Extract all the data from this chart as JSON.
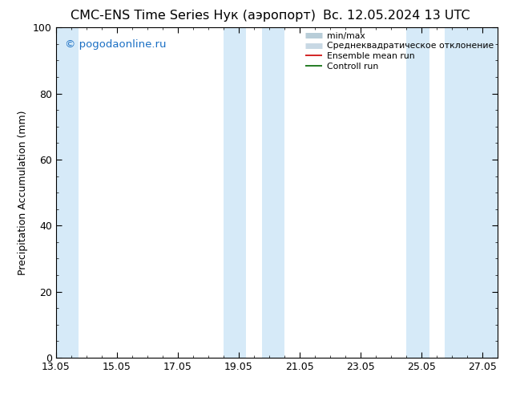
{
  "title_left": "CMC-ENS Time Series Нук (аэропорт)",
  "title_right": "Вс. 12.05.2024 13 UTC",
  "ylabel": "Precipitation Accumulation (mm)",
  "watermark": "© pogodaonline.ru",
  "ylim": [
    0,
    100
  ],
  "yticks": [
    0,
    20,
    40,
    60,
    80,
    100
  ],
  "xlim_start": 0.0,
  "xlim_end": 14.5,
  "xtick_labels": [
    "13.05",
    "15.05",
    "17.05",
    "19.05",
    "21.05",
    "23.05",
    "25.05",
    "27.05"
  ],
  "xtick_positions": [
    0,
    2,
    4,
    6,
    8,
    10,
    12,
    14
  ],
  "shaded_bands": [
    [
      -0.1,
      0.75
    ],
    [
      5.5,
      6.25
    ],
    [
      6.75,
      7.5
    ],
    [
      11.5,
      12.25
    ],
    [
      12.75,
      14.6
    ]
  ],
  "shade_color": "#d6eaf8",
  "background_color": "#ffffff",
  "legend_items": [
    {
      "label": "min/max",
      "color": "#b8cdd8",
      "lw": 5
    },
    {
      "label": "Среднеквадратическое отклонение",
      "color": "#c8d8e4",
      "lw": 5
    },
    {
      "label": "Ensemble mean run",
      "color": "#cc0000",
      "lw": 1.2
    },
    {
      "label": "Controll run",
      "color": "#006600",
      "lw": 1.2
    }
  ],
  "title_fontsize": 11.5,
  "axis_label_fontsize": 9,
  "tick_fontsize": 9,
  "watermark_color": "#1a6fc4",
  "watermark_fontsize": 9.5
}
